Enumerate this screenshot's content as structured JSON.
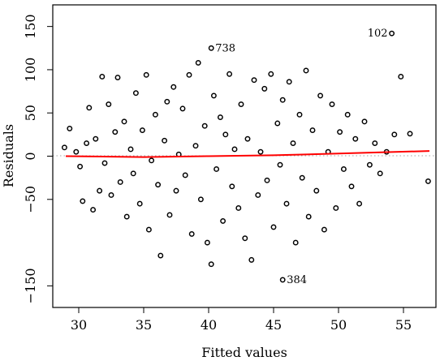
{
  "chart_data": {
    "type": "scatter",
    "title": "",
    "xlabel": "Fitted values",
    "ylabel": "Residuals",
    "xlim": [
      28,
      57.5
    ],
    "ylim": [
      -175,
      175
    ],
    "x_ticks": [
      30,
      35,
      40,
      45,
      50,
      55
    ],
    "y_ticks": [
      -150,
      -50,
      0,
      50,
      100,
      150
    ],
    "x_tick_labels": [
      "30",
      "35",
      "40",
      "45",
      "50",
      "55"
    ],
    "y_tick_labels": [
      "−150",
      "−50",
      "0",
      "50",
      "100",
      "150"
    ],
    "grid": false,
    "zero_reference": {
      "y": 0,
      "style": "dotted",
      "color": "#a0a0a0"
    },
    "fit_line": {
      "color": "#ff0000",
      "points": [
        [
          29,
          0
        ],
        [
          35,
          -1
        ],
        [
          40,
          0
        ],
        [
          45,
          1
        ],
        [
          50,
          3
        ],
        [
          57,
          6
        ]
      ]
    },
    "labeled_points": [
      {
        "label": "738",
        "x": 40.2,
        "y": 125
      },
      {
        "label": "102",
        "x": 54.1,
        "y": 142
      },
      {
        "label": "384",
        "x": 45.7,
        "y": -143
      }
    ],
    "series": [
      {
        "points": [
          [
            28.9,
            10
          ],
          [
            29.3,
            32
          ],
          [
            29.8,
            5
          ],
          [
            30.1,
            -12
          ],
          [
            30.3,
            -52
          ],
          [
            30.6,
            15
          ],
          [
            30.8,
            56
          ],
          [
            31.1,
            -62
          ],
          [
            31.3,
            20
          ],
          [
            31.6,
            -40
          ],
          [
            31.8,
            92
          ],
          [
            32.0,
            -8
          ],
          [
            32.3,
            60
          ],
          [
            32.5,
            -45
          ],
          [
            32.8,
            28
          ],
          [
            33.0,
            91
          ],
          [
            33.2,
            -30
          ],
          [
            33.5,
            40
          ],
          [
            33.7,
            -70
          ],
          [
            34.0,
            8
          ],
          [
            34.2,
            -20
          ],
          [
            34.4,
            73
          ],
          [
            34.7,
            -55
          ],
          [
            34.9,
            30
          ],
          [
            35.2,
            94
          ],
          [
            35.4,
            -85
          ],
          [
            35.6,
            -5
          ],
          [
            35.9,
            48
          ],
          [
            36.1,
            -33
          ],
          [
            36.3,
            -115
          ],
          [
            36.6,
            18
          ],
          [
            36.8,
            63
          ],
          [
            37.0,
            -68
          ],
          [
            37.3,
            80
          ],
          [
            37.5,
            -40
          ],
          [
            37.7,
            2
          ],
          [
            38.0,
            55
          ],
          [
            38.2,
            -22
          ],
          [
            38.5,
            94
          ],
          [
            38.7,
            -90
          ],
          [
            39.0,
            12
          ],
          [
            39.2,
            108
          ],
          [
            39.4,
            -50
          ],
          [
            39.7,
            35
          ],
          [
            39.9,
            -100
          ],
          [
            40.2,
            -125
          ],
          [
            40.4,
            70
          ],
          [
            40.6,
            -15
          ],
          [
            40.9,
            45
          ],
          [
            41.1,
            -75
          ],
          [
            41.3,
            25
          ],
          [
            41.6,
            95
          ],
          [
            41.8,
            -35
          ],
          [
            42.0,
            8
          ],
          [
            42.3,
            -60
          ],
          [
            42.5,
            60
          ],
          [
            42.8,
            -95
          ],
          [
            43.0,
            20
          ],
          [
            43.3,
            -120
          ],
          [
            43.5,
            88
          ],
          [
            43.8,
            -45
          ],
          [
            44.0,
            5
          ],
          [
            44.3,
            78
          ],
          [
            44.5,
            -28
          ],
          [
            44.8,
            95
          ],
          [
            45.0,
            -82
          ],
          [
            45.3,
            38
          ],
          [
            45.5,
            -10
          ],
          [
            45.7,
            65
          ],
          [
            46.0,
            -55
          ],
          [
            46.2,
            86
          ],
          [
            46.5,
            15
          ],
          [
            46.7,
            -100
          ],
          [
            47.0,
            48
          ],
          [
            47.2,
            -25
          ],
          [
            47.5,
            99
          ],
          [
            47.7,
            -70
          ],
          [
            48.0,
            30
          ],
          [
            48.3,
            -40
          ],
          [
            48.6,
            70
          ],
          [
            48.9,
            -85
          ],
          [
            49.2,
            5
          ],
          [
            49.5,
            60
          ],
          [
            49.8,
            -60
          ],
          [
            50.1,
            28
          ],
          [
            50.4,
            -15
          ],
          [
            50.7,
            48
          ],
          [
            51.0,
            -35
          ],
          [
            51.3,
            20
          ],
          [
            51.6,
            -55
          ],
          [
            52.0,
            40
          ],
          [
            52.4,
            -10
          ],
          [
            52.8,
            15
          ],
          [
            53.2,
            -20
          ],
          [
            53.7,
            5
          ],
          [
            54.3,
            25
          ],
          [
            54.8,
            92
          ],
          [
            55.5,
            26
          ],
          [
            56.9,
            -29
          ]
        ]
      }
    ]
  }
}
